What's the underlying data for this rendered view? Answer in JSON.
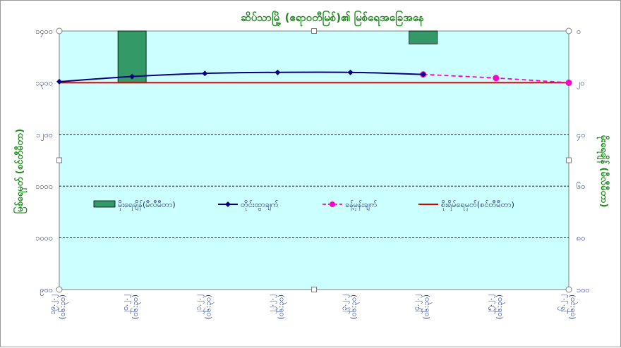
{
  "colors": {
    "plot_bg": "#ccffff",
    "rain_bar": "#339966",
    "observed_line": "#000080",
    "forecast_line": "#ff00cc",
    "danger_line": "#dd0000",
    "title": "#1a8a1a",
    "ticks": "#1f3c99"
  },
  "chart_data": {
    "type": "line",
    "title": "ဆိပ်သာမြို့ (ဧရာဝတီမြစ်)၏ မြစ်ရေအခြေအနေ",
    "ylabel_left": "မြစ်ရေမှတ် (စင်တီမီတာ)",
    "ylabel_right": "မိုးရေချိန် (မီလီမီတာ)",
    "ylim_left": [
      900,
      1400
    ],
    "ylim_right": [
      100,
      0
    ],
    "yticks_left": [
      "၉၀၀",
      "၁၀၀၀",
      "၁၁၀၀",
      "၁၂၀၀",
      "၁၃၀၀",
      "၁၄၀၀"
    ],
    "yticks_left_values": [
      900,
      1000,
      1100,
      1200,
      1300,
      1400
    ],
    "yticks_right": [
      "၀",
      "၂၀",
      "၄၀",
      "၆၀",
      "၈၀",
      "၁၀၀"
    ],
    "yticks_right_values": [
      0,
      20,
      40,
      60,
      80,
      100
    ],
    "categories": [
      [
        "၁၉.၂.၂",
        "(၀၆:၃၀)"
      ],
      [
        "၂၀.၂.၂",
        "(၀၆:၃၀)"
      ],
      [
        "၂၁.၂.၂",
        "(၀၆:၃၀)"
      ],
      [
        "၂၂.၂.၂",
        "(၀၆:၃၀)"
      ],
      [
        "၂၃.၂.၂",
        "(၀၆:၃၀)"
      ],
      [
        "၂၄.၂.၂",
        "(၀၆:၃၀)"
      ],
      [
        "၂၅.၂.၂",
        "(၀၆:၃၀)"
      ],
      [
        "၂၆.၂.၂",
        "(၀၆:၃၀)"
      ]
    ],
    "legend_position": "inside-middle",
    "grid": true,
    "rainfall": {
      "name": "မိုးရေချိန်(မီလီမီတာ)",
      "values": [
        null,
        20,
        null,
        null,
        null,
        5,
        null,
        null
      ]
    },
    "observed": {
      "name": "တိုင်းထွာချက်",
      "values": [
        1302,
        1312,
        1318,
        1320,
        1320,
        1316,
        null,
        null
      ]
    },
    "forecast": {
      "name": "ခန့်မှန်းချက်",
      "values": [
        null,
        null,
        null,
        null,
        null,
        1316,
        1309,
        1300
      ]
    },
    "danger_level": {
      "name": "စိုးရိမ်ရေမှတ်(စင်တီမီတာ)",
      "value": 1300
    }
  }
}
